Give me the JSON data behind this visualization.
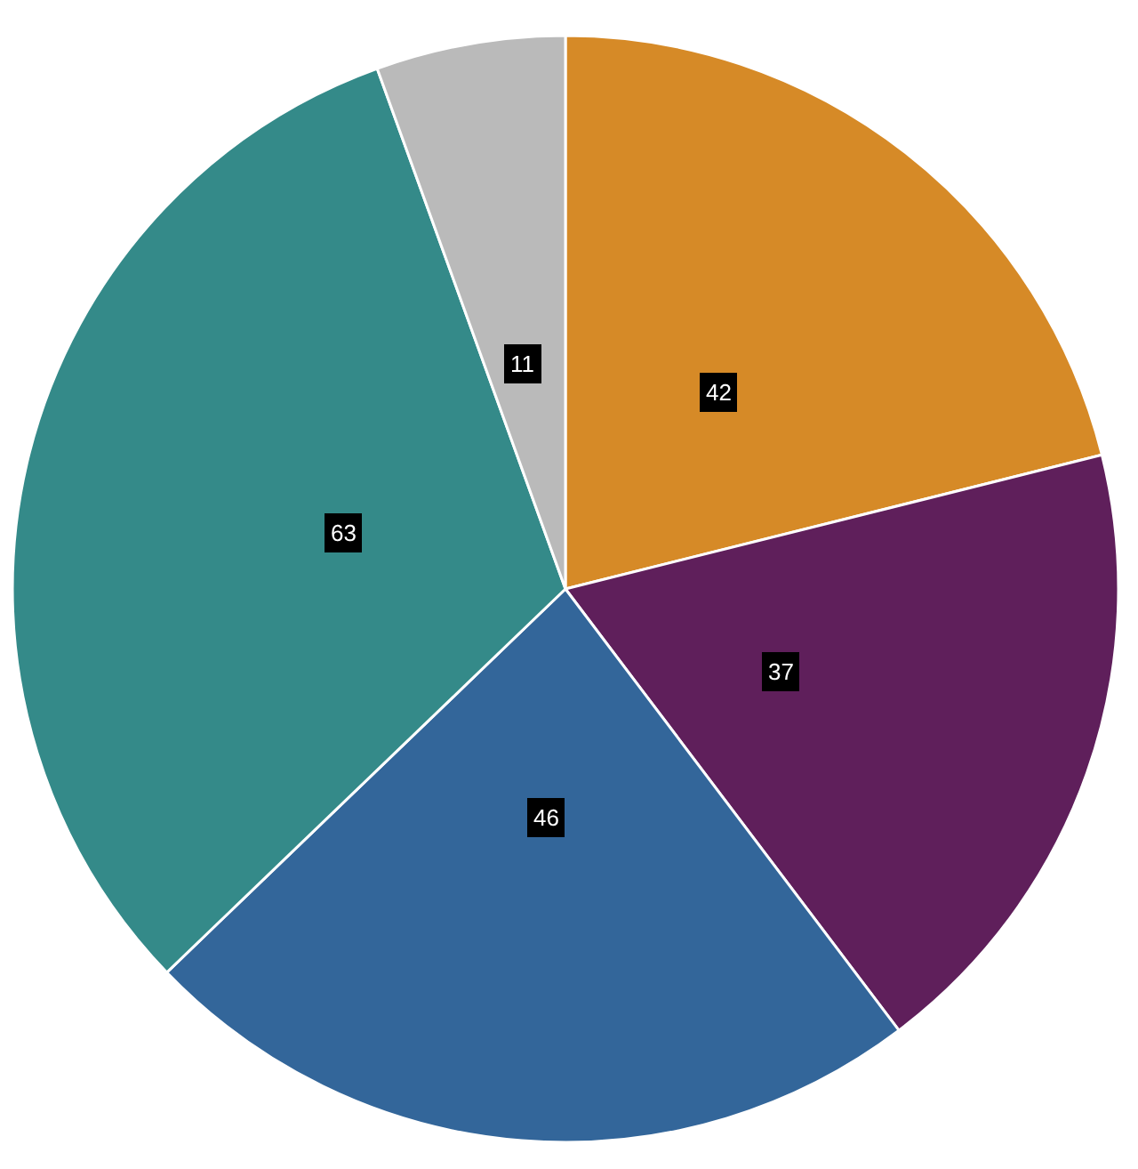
{
  "chart_data": {
    "type": "pie",
    "categories": [
      null,
      null,
      null,
      null,
      null
    ],
    "values": [
      42,
      37,
      46,
      63,
      11
    ],
    "colors": [
      "#d68a27",
      "#5f1f5b",
      "#33669a",
      "#348a89",
      "#bababa"
    ],
    "data_labels": true,
    "legend": false
  }
}
